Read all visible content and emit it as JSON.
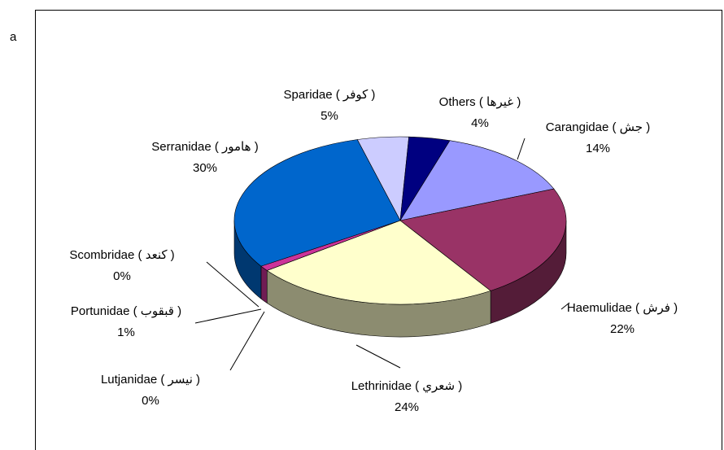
{
  "panel_label": "a",
  "chart_data": {
    "type": "pie3d",
    "categories": [
      "Sparidae ( كوفر )",
      "Others ( غيرها )",
      "Carangidae ( جش )",
      "Haemulidae ( فرش )",
      "Lethrinidae ( شعري )",
      "Lutjanidae ( نيسر )",
      "Portunidae ( قبقوب )",
      "Scombridae ( كنعد )",
      "Serranidae ( هامور )"
    ],
    "values": [
      5,
      4,
      14,
      22,
      24,
      0,
      1,
      0,
      30
    ],
    "value_labels": [
      "5%",
      "4%",
      "14%",
      "22%",
      "24%",
      "0%",
      "1%",
      "0%",
      "30%"
    ],
    "colors": [
      "#ccccff",
      "#000080",
      "#9999ff",
      "#993366",
      "#ffffcc",
      "#ff8080",
      "#cc3399",
      "#660066",
      "#0066cc"
    ]
  }
}
